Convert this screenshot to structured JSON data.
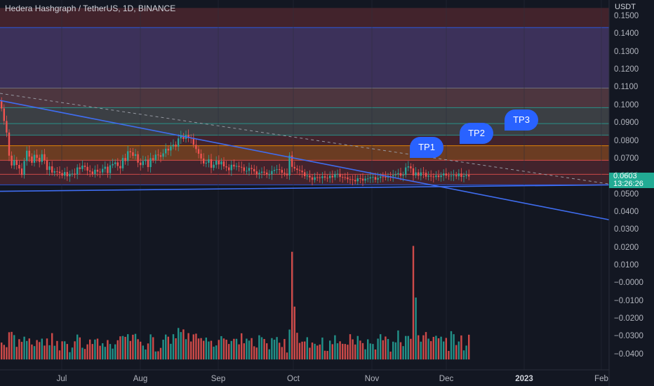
{
  "header": {
    "title": "Hedera Hashgraph / TetherUS, 1D, BINANCE",
    "unit": "USDT"
  },
  "price_tag": {
    "price": "0.0603",
    "countdown": "13:26:26"
  },
  "targets": [
    "TP1",
    "TP2",
    "TP3"
  ],
  "colors": {
    "up": "#26a69a",
    "down": "#ef5350",
    "line": "#3f6df0",
    "background": "#131722"
  },
  "chart_data": {
    "type": "candlestick",
    "title": "Hedera Hashgraph / TetherUS, 1D, BINANCE",
    "ylabel": "USDT",
    "ylim": [
      -0.047,
      0.155
    ],
    "y_ticks": [
      "0.1500",
      "0.1400",
      "0.1300",
      "0.1200",
      "0.1100",
      "0.1000",
      "0.0900",
      "0.0800",
      "0.0700",
      "0.0600",
      "0.0500",
      "0.0400",
      "0.0300",
      "0.0200",
      "0.0100",
      "−0.0000",
      "−0.0100",
      "−0.0200",
      "−0.0300",
      "−0.0400"
    ],
    "x_ticks": [
      "Jul",
      "Aug",
      "Sep",
      "Oct",
      "Nov",
      "Dec",
      "2023",
      "Feb"
    ],
    "x_ticks_bold": [
      "2023"
    ],
    "last_price": 0.0603,
    "price_zones": [
      {
        "from": 0.0694,
        "to": 0.155,
        "color": "#ef5350"
      },
      {
        "from": 0.11,
        "to": 0.144,
        "color": "#2962ff"
      },
      {
        "from": 0.099,
        "to": 0.11,
        "color": "#787b86"
      },
      {
        "from": 0.0835,
        "to": 0.099,
        "color": "#26a69a"
      },
      {
        "from": 0.0694,
        "to": 0.0776,
        "color": "#ff9800"
      },
      {
        "from": 0.0556,
        "to": 0.0694,
        "color": "#ef5350"
      }
    ],
    "level_lines": [
      0.144,
      0.11,
      0.099,
      0.09,
      0.0835,
      0.0776,
      0.0694,
      0.0615,
      0.0556
    ],
    "price": {
      "open": [
        0.103,
        0.0985,
        0.0915,
        0.085,
        0.072,
        0.0665,
        0.0695,
        0.0668,
        0.0648,
        0.0612,
        0.069,
        0.0748,
        0.0715,
        0.068,
        0.0725,
        0.0708,
        0.0685,
        0.0728,
        0.0694,
        0.064,
        0.066,
        0.0625,
        0.0632,
        0.063,
        0.0622,
        0.0608,
        0.0628,
        0.0604,
        0.0618,
        0.0619,
        0.0614,
        0.0654,
        0.0645,
        0.0664,
        0.0657,
        0.0636,
        0.0631,
        0.0617,
        0.0641,
        0.063,
        0.0626,
        0.0646,
        0.0658,
        0.0622,
        0.0666,
        0.0673,
        0.0682,
        0.0662,
        0.0649,
        0.0707,
        0.069,
        0.0745,
        0.0739,
        0.0719,
        0.0728,
        0.0681,
        0.0667,
        0.069,
        0.0698,
        0.0656,
        0.0706,
        0.0696,
        0.0726,
        0.0722,
        0.0714,
        0.0733,
        0.0759,
        0.0749,
        0.0772,
        0.0782,
        0.0771,
        0.0817,
        0.083,
        0.0814,
        0.0837,
        0.0822,
        0.082,
        0.0781,
        0.0757,
        0.0731,
        0.0704,
        0.0676,
        0.068,
        0.07,
        0.0652,
        0.0669,
        0.0692,
        0.0671,
        0.0688,
        0.066,
        0.0654,
        0.0638,
        0.0669,
        0.0659,
        0.0662,
        0.0657,
        0.0654,
        0.0634,
        0.0635,
        0.0651,
        0.0645,
        0.0632,
        0.0616,
        0.0624,
        0.063,
        0.0625,
        0.0615,
        0.0615,
        0.0634,
        0.064,
        0.0644,
        0.064,
        0.0624,
        0.0619,
        0.061,
        0.0721,
        0.0657,
        0.0648,
        0.064,
        0.0636,
        0.0627,
        0.0605,
        0.0608,
        0.0598,
        0.0584,
        0.0599,
        0.0598,
        0.0594,
        0.0604,
        0.0596,
        0.0594,
        0.0607,
        0.0598,
        0.0616,
        0.0618,
        0.06,
        0.0599,
        0.0598,
        0.0588,
        0.0587,
        0.0584,
        0.0576,
        0.0593,
        0.0591,
        0.058,
        0.0591,
        0.0592,
        0.0599,
        0.06,
        0.0585,
        0.0595,
        0.0603,
        0.0602,
        0.0597,
        0.0605,
        0.0604,
        0.061,
        0.0616,
        0.0622,
        0.0607,
        0.0612,
        0.0654,
        0.066,
        0.0649,
        0.0609,
        0.0626,
        0.0607,
        0.0626,
        0.0624,
        0.0602,
        0.0608,
        0.0603,
        0.06,
        0.0609,
        0.06,
        0.0609,
        0.062,
        0.0608,
        0.0605,
        0.0608,
        0.0611,
        0.0604,
        0.062,
        0.0601,
        0.0606,
        0.0612
      ],
      "close": [
        0.0985,
        0.0915,
        0.085,
        0.072,
        0.0665,
        0.0695,
        0.0668,
        0.0648,
        0.0612,
        0.069,
        0.0748,
        0.0715,
        0.068,
        0.0725,
        0.0708,
        0.0685,
        0.0728,
        0.0694,
        0.064,
        0.066,
        0.0625,
        0.0632,
        0.063,
        0.0622,
        0.0608,
        0.0628,
        0.0604,
        0.0618,
        0.0619,
        0.0614,
        0.0654,
        0.0645,
        0.0664,
        0.0657,
        0.0636,
        0.0631,
        0.0617,
        0.0641,
        0.063,
        0.0626,
        0.0646,
        0.0658,
        0.0622,
        0.0666,
        0.0673,
        0.0682,
        0.0662,
        0.0649,
        0.0707,
        0.069,
        0.0745,
        0.0739,
        0.0719,
        0.0728,
        0.0681,
        0.0667,
        0.069,
        0.0698,
        0.0656,
        0.0706,
        0.0696,
        0.0726,
        0.0722,
        0.0714,
        0.0733,
        0.0759,
        0.0749,
        0.0772,
        0.0782,
        0.0771,
        0.0817,
        0.083,
        0.0814,
        0.0837,
        0.0822,
        0.082,
        0.0781,
        0.0757,
        0.0731,
        0.0704,
        0.0676,
        0.068,
        0.07,
        0.0652,
        0.0669,
        0.0692,
        0.0671,
        0.0688,
        0.066,
        0.0654,
        0.0638,
        0.0669,
        0.0659,
        0.0662,
        0.0657,
        0.0654,
        0.0634,
        0.0635,
        0.0651,
        0.0645,
        0.0632,
        0.0616,
        0.0624,
        0.063,
        0.0625,
        0.0615,
        0.0615,
        0.0634,
        0.064,
        0.0644,
        0.064,
        0.0624,
        0.0619,
        0.061,
        0.0721,
        0.0657,
        0.0648,
        0.064,
        0.0636,
        0.0627,
        0.0605,
        0.0608,
        0.0598,
        0.0584,
        0.0599,
        0.0598,
        0.0594,
        0.0604,
        0.0596,
        0.0594,
        0.0607,
        0.0598,
        0.0616,
        0.0618,
        0.06,
        0.0599,
        0.0598,
        0.0588,
        0.0587,
        0.0584,
        0.0576,
        0.0593,
        0.0591,
        0.058,
        0.0591,
        0.0592,
        0.0599,
        0.06,
        0.0585,
        0.0595,
        0.0603,
        0.0602,
        0.0597,
        0.0605,
        0.0604,
        0.061,
        0.0616,
        0.0622,
        0.0607,
        0.0612,
        0.0654,
        0.066,
        0.0649,
        0.0609,
        0.0626,
        0.0607,
        0.0626,
        0.0624,
        0.0602,
        0.0608,
        0.0603,
        0.06,
        0.0609,
        0.06,
        0.0609,
        0.062,
        0.0608,
        0.0605,
        0.0608,
        0.0611,
        0.0604,
        0.062,
        0.0601,
        0.0606,
        0.0612,
        0.0603
      ]
    },
    "volume": [
      0.0095,
      0.0082,
      0.0069,
      0.0153,
      0.0155,
      0.0137,
      0.0071,
      0.0114,
      0.0099,
      0.0128,
      0.0104,
      0.0118,
      0.0084,
      0.0075,
      0.0109,
      0.0098,
      0.0117,
      0.0078,
      0.0118,
      0.008,
      0.0148,
      0.0077,
      0.0104,
      0.0051,
      0.0102,
      0.0102,
      0.0087,
      0.0041,
      0.0067,
      0.0102,
      0.014,
      0.0124,
      0.0066,
      0.0059,
      0.0085,
      0.0112,
      0.0087,
      0.0112,
      0.0117,
      0.0077,
      0.0091,
      0.0071,
      0.0109,
      0.0087,
      0.0061,
      0.0085,
      0.0108,
      0.013,
      0.0132,
      0.0127,
      0.0142,
      0.0104,
      0.0139,
      0.0144,
      0.0114,
      0.01,
      0.0078,
      0.0056,
      0.009,
      0.0141,
      0.0125,
      0.0045,
      0.0046,
      0.0065,
      0.0111,
      0.014,
      0.0128,
      0.0088,
      0.0142,
      0.0119,
      0.0177,
      0.0154,
      0.0169,
      0.0114,
      0.0148,
      0.0101,
      0.0141,
      0.0145,
      0.0118,
      0.012,
      0.0105,
      0.0123,
      0.0101,
      0.0105,
      0.0072,
      0.0079,
      0.011,
      0.0131,
      0.0118,
      0.0111,
      0.0087,
      0.0104,
      0.0116,
      0.0116,
      0.0085,
      0.0147,
      0.0091,
      0.0117,
      0.0106,
      0.012,
      0.0074,
      0.0067,
      0.0136,
      0.0125,
      0.0115,
      0.0091,
      0.0057,
      0.012,
      0.0111,
      0.0126,
      0.0094,
      0.007,
      0.0115,
      0.0039,
      0.0168,
      0.0605,
      0.0297,
      0.015,
      0.0093,
      0.01,
      0.0101,
      0.0125,
      0.0066,
      0.0095,
      0.0088,
      0.0078,
      0.0084,
      0.0123,
      0.0049,
      0.0048,
      0.0106,
      0.0086,
      0.0136,
      0.0091,
      0.0102,
      0.0088,
      0.0087,
      0.0083,
      0.0142,
      0.0113,
      0.0084,
      0.0132,
      0.0106,
      0.0092,
      0.0057,
      0.0113,
      0.009,
      0.0087,
      0.0056,
      0.0117,
      0.0142,
      0.0108,
      0.0129,
      0.0115,
      0.0044,
      0.01,
      0.0096,
      0.0163,
      0.0097,
      0.0075,
      0.0132,
      0.0132,
      0.0116,
      0.0638,
      0.0348,
      0.0136,
      0.01,
      0.0136,
      0.0154,
      0.0117,
      0.0103,
      0.0127,
      0.0133,
      0.0119,
      0.0128,
      0.0101,
      0.0121,
      0.0048,
      0.0159,
      0.0142,
      0.0081,
      0.0101,
      0.0135,
      0.0051,
      0.0078,
      0.0139,
      0.0118,
      0.0186,
      0.003
    ],
    "trend_lines": [
      {
        "style": "solid",
        "points": [
          [
            "Jun 7",
            0.103
          ],
          [
            "Nov 1",
            0.0615
          ],
          [
            "Feb 1",
            0.036
          ]
        ]
      },
      {
        "style": "solid",
        "points": [
          [
            "Jun 7",
            0.052
          ],
          [
            "Feb 1",
            0.0556
          ]
        ]
      },
      {
        "style": "dashed",
        "points": [
          [
            "Jun 7",
            0.107
          ],
          [
            "Feb 1",
            0.0561
          ]
        ]
      }
    ]
  }
}
